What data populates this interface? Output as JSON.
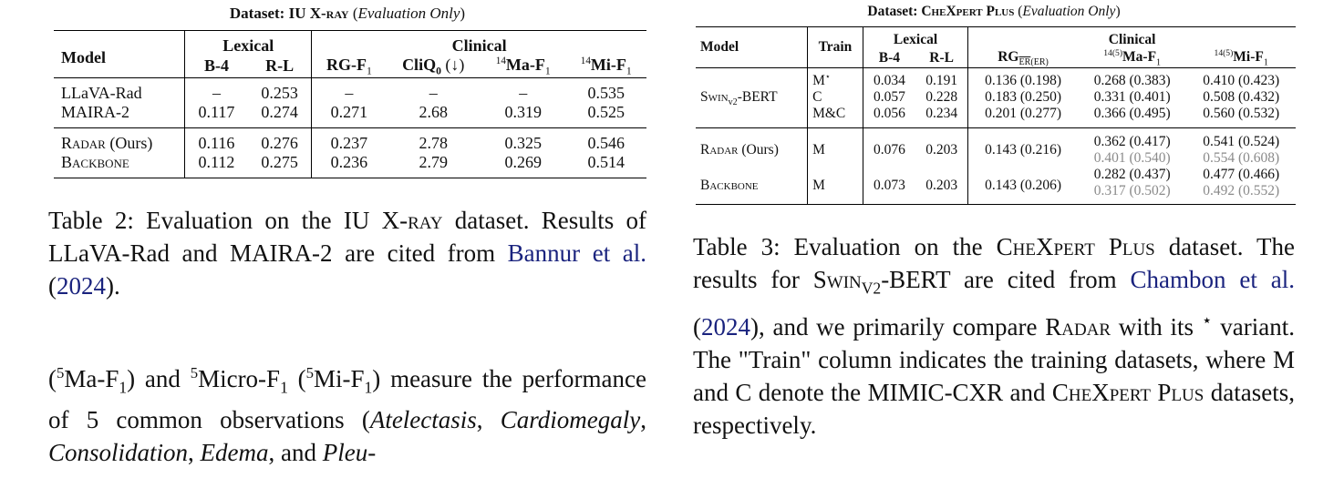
{
  "table2": {
    "title_prefix": "Dataset: IU X-",
    "title_sc": "ray",
    "title_suffix": "Evaluation Only",
    "headers": {
      "model": "Model",
      "lexical": "Lexical",
      "clinical": "Clinical",
      "b4": "B-4",
      "rl": "R-L",
      "rg": "RG-F",
      "cliq": "CliQ",
      "cliq_arrow": "(↓)",
      "ma": "Ma-F",
      "mi": "Mi-F",
      "sup14": "14",
      "sub1": "1",
      "sub0": "0"
    },
    "rows": [
      {
        "model": "LLaVA-Rad",
        "b4": "–",
        "rl": "0.253",
        "rg": "–",
        "cliq": "–",
        "ma": "–",
        "mi": "0.535"
      },
      {
        "model": "MAIRA-2",
        "b4": "0.117",
        "rl": "0.274",
        "rg": "0.271",
        "cliq": "2.68",
        "ma": "0.319",
        "mi": "0.525"
      },
      {
        "model_sc": "Radar",
        "model_suffix": " (Ours)",
        "b4": "0.116",
        "rl": "0.276",
        "rg": "0.237",
        "cliq": "2.78",
        "ma": "0.325",
        "mi": "0.546"
      },
      {
        "model_sc": "Backbone",
        "b4": "0.112",
        "rl": "0.275",
        "rg": "0.236",
        "cliq": "2.79",
        "ma": "0.269",
        "mi": "0.514"
      }
    ]
  },
  "caption2": {
    "a": "Table 2: Evaluation on the IU X-",
    "a_sc": "ray",
    "b": " dataset. Results of LLaVA-Rad and MAIRA-2 are cited from ",
    "link1": "Bannur et al.",
    "c": " (",
    "link2": "2024",
    "d": ")."
  },
  "body_text": {
    "a": "(",
    "sup5": "5",
    "b": "Ma-F",
    "c": ") and ",
    "d": "Micro-F",
    "e": " (",
    "f": "Mi-F",
    "g": ") measure the performance of 5 common observations (",
    "i1": "Atelectasis",
    "comma": ", ",
    "i2": "Cardiomegaly",
    "i3": "Consolidation",
    "i4": "Edema",
    "h": ", and ",
    "i5": "Pleu-"
  },
  "table3": {
    "title_prefix": "Dataset: C",
    "title_sc1": "he",
    "title_x": "X",
    "title_sc2": "pert",
    "title_p": " P",
    "title_sc3": "lus",
    "title_suffix": "Evaluation Only",
    "headers": {
      "model": "Model",
      "train": "Train",
      "lexical": "Lexical",
      "clinical": "Clinical",
      "b4": "B-4",
      "rl": "R-L",
      "rg": "RG",
      "rg_sub": "ER",
      "rg_sub2": "(ER)",
      "ma": "Ma-F",
      "mi": "Mi-F",
      "sup": "14(5)",
      "sub1": "1"
    },
    "swin_model": "Swin",
    "swin_sub": "v2",
    "swin_suffix": "-BERT",
    "swin_rows": [
      {
        "train": "M",
        "star": "⋆",
        "b4": "0.034",
        "rl": "0.191",
        "rg": "0.136 (0.198)",
        "ma": "0.268 (0.383)",
        "mi": "0.410 (0.423)"
      },
      {
        "train": "C",
        "b4": "0.057",
        "rl": "0.228",
        "rg": "0.183 (0.250)",
        "ma": "0.331 (0.401)",
        "mi": "0.508 (0.432)"
      },
      {
        "train": "M&C",
        "b4": "0.056",
        "rl": "0.234",
        "rg": "0.201 (0.277)",
        "ma": "0.366 (0.495)",
        "mi": "0.560 (0.532)"
      }
    ],
    "radar": {
      "model_sc": "Radar",
      "model_suffix": " (Ours)",
      "train": "M",
      "b4": "0.076",
      "rl": "0.203",
      "rg": "0.143 (0.216)",
      "ma": "0.362 (0.417)",
      "mi": "0.541 (0.524)",
      "ma_gray": "0.401 (0.540)",
      "mi_gray": "0.554 (0.608)"
    },
    "backbone": {
      "model_sc": "Backbone",
      "train": "M",
      "b4": "0.073",
      "rl": "0.203",
      "rg": "0.143 (0.206)",
      "ma": "0.282 (0.437)",
      "mi": "0.477 (0.466)",
      "ma_gray": "0.317 (0.502)",
      "mi_gray": "0.492 (0.552)"
    }
  },
  "caption3": {
    "a": "Table 3: Evaluation on the C",
    "sc1": "he",
    "x": "X",
    "sc2": "pert",
    "p": " P",
    "sc3": "lus",
    "b": " dataset. The results for S",
    "sc_win": "win",
    "v2": "V2",
    "c": "-BERT are cited from ",
    "link1": "Chambon et al.",
    "d": " (",
    "link2": "2024",
    "e": "), and we primarily compare R",
    "sc_adar": "adar",
    "f": " with its ",
    "star": "⋆",
    "g": " variant. The \"Train\" column indicates the training datasets, where M and C denote the MIMIC-CXR and C",
    "h": " datasets, respectively."
  }
}
